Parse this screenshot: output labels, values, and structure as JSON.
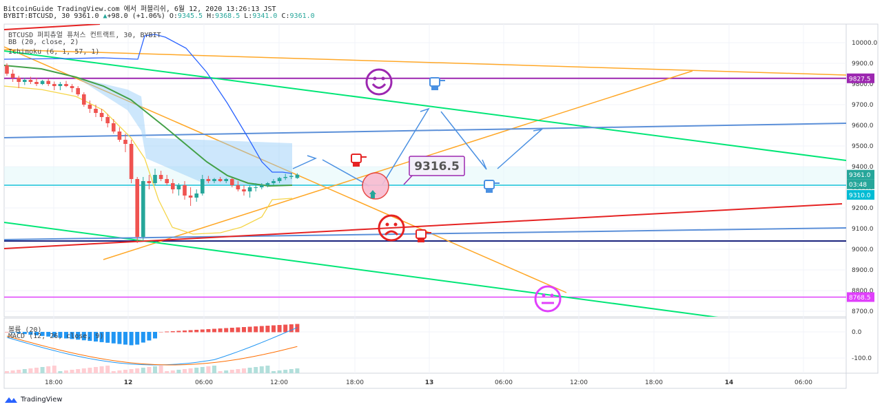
{
  "header": {
    "line1": "BitcoinGuide TradingView.com 에서 퍼블리쉬, 6월 12, 2020 13:26:13 JST",
    "symbol": "BYBIT:BTCUSD, 30",
    "price": "9361.0",
    "change": "+98.0 (+1.06%)",
    "o_label": "O:",
    "o": "9345.5",
    "h_label": "H:",
    "h": "9368.5",
    "l_label": "L:",
    "l": "9341.0",
    "c_label": "C:",
    "c": "9361.0"
  },
  "legend": {
    "main": "BTCUSD 퍼피츄얼 퓨처스 컨트랙트, 30, BYBIT",
    "bb": "BB (20, close, 2)",
    "ichimoku": "Ichimoku (6, 1, 57, 1)",
    "volume": "볼륨 (20)",
    "macd": "MACD (12, 26, close, 9)"
  },
  "annotations": {
    "price_box": "9316.5"
  },
  "footer": {
    "brand": "TradingView"
  },
  "colors": {
    "up": "#26a69a",
    "down": "#ef5350",
    "bb": "#2962ff",
    "cloud": "#90caf9",
    "green": "#00e676",
    "orange": "#ffa726",
    "red": "#e52222",
    "purple": "#9c27b0",
    "magenta": "#e040fb",
    "blue_line": "#5b8fd8",
    "navy": "#1a237e",
    "cyan": "#4dd0e1"
  },
  "chart_data": {
    "type": "candlestick",
    "y_axis_ticks": [
      "10000.0",
      "9900.0",
      "9800.0",
      "9700.0",
      "9600.0",
      "9500.0",
      "9400.0",
      "9300.0",
      "9200.0",
      "9100.0",
      "9000.0",
      "8900.0",
      "8800.0",
      "8700.0"
    ],
    "macd_axis_ticks": [
      "0.0",
      "-100.0"
    ],
    "x_axis_ticks": [
      "18:00",
      "12",
      "06:00",
      "12:00",
      "18:00",
      "13",
      "06:00",
      "12:00",
      "18:00",
      "14",
      "06:00"
    ],
    "price_labels": [
      {
        "value": "9827.5",
        "color": "#9c27b0"
      },
      {
        "value": "9361.0",
        "color": "#26a69a"
      },
      {
        "value": "03:48",
        "color": "#26a69a"
      },
      {
        "value": "9310.0",
        "color": "#00bcd4"
      },
      {
        "value": "8768.5",
        "color": "#e040fb"
      }
    ],
    "horizontal_levels": [
      9827.5,
      9310.0,
      9040.0,
      8768.5
    ],
    "candles": [
      {
        "o": 9890,
        "h": 9900,
        "l": 9840,
        "c": 9850
      },
      {
        "o": 9850,
        "h": 9870,
        "l": 9810,
        "c": 9830
      },
      {
        "o": 9830,
        "h": 9840,
        "l": 9780,
        "c": 9810
      },
      {
        "o": 9810,
        "h": 9830,
        "l": 9795,
        "c": 9820
      },
      {
        "o": 9820,
        "h": 9835,
        "l": 9800,
        "c": 9810
      },
      {
        "o": 9810,
        "h": 9830,
        "l": 9790,
        "c": 9800
      },
      {
        "o": 9800,
        "h": 9820,
        "l": 9795,
        "c": 9815
      },
      {
        "o": 9815,
        "h": 9825,
        "l": 9790,
        "c": 9800
      },
      {
        "o": 9800,
        "h": 9812,
        "l": 9770,
        "c": 9790
      },
      {
        "o": 9790,
        "h": 9810,
        "l": 9770,
        "c": 9800
      },
      {
        "o": 9800,
        "h": 9815,
        "l": 9785,
        "c": 9790
      },
      {
        "o": 9790,
        "h": 9800,
        "l": 9760,
        "c": 9780
      },
      {
        "o": 9780,
        "h": 9790,
        "l": 9740,
        "c": 9750
      },
      {
        "o": 9750,
        "h": 9760,
        "l": 9690,
        "c": 9700
      },
      {
        "o": 9700,
        "h": 9720,
        "l": 9660,
        "c": 9680
      },
      {
        "o": 9680,
        "h": 9700,
        "l": 9640,
        "c": 9660
      },
      {
        "o": 9660,
        "h": 9680,
        "l": 9620,
        "c": 9640
      },
      {
        "o": 9640,
        "h": 9655,
        "l": 9590,
        "c": 9610
      },
      {
        "o": 9610,
        "h": 9630,
        "l": 9560,
        "c": 9570
      },
      {
        "o": 9570,
        "h": 9590,
        "l": 9520,
        "c": 9530
      },
      {
        "o": 9530,
        "h": 9560,
        "l": 9470,
        "c": 9510
      },
      {
        "o": 9510,
        "h": 9530,
        "l": 9320,
        "c": 9340
      },
      {
        "o": 9340,
        "h": 9350,
        "l": 9030,
        "c": 9060
      },
      {
        "o": 9060,
        "h": 9350,
        "l": 9040,
        "c": 9330
      },
      {
        "o": 9330,
        "h": 9360,
        "l": 9290,
        "c": 9320
      },
      {
        "o": 9320,
        "h": 9390,
        "l": 9310,
        "c": 9360
      },
      {
        "o": 9360,
        "h": 9380,
        "l": 9330,
        "c": 9340
      },
      {
        "o": 9340,
        "h": 9360,
        "l": 9310,
        "c": 9320
      },
      {
        "o": 9320,
        "h": 9340,
        "l": 9270,
        "c": 9290
      },
      {
        "o": 9290,
        "h": 9320,
        "l": 9260,
        "c": 9310
      },
      {
        "o": 9310,
        "h": 9330,
        "l": 9240,
        "c": 9260
      },
      {
        "o": 9260,
        "h": 9300,
        "l": 9210,
        "c": 9250
      },
      {
        "o": 9250,
        "h": 9290,
        "l": 9230,
        "c": 9270
      },
      {
        "o": 9270,
        "h": 9360,
        "l": 9260,
        "c": 9340
      },
      {
        "o": 9340,
        "h": 9355,
        "l": 9320,
        "c": 9330
      },
      {
        "o": 9330,
        "h": 9345,
        "l": 9320,
        "c": 9340
      },
      {
        "o": 9340,
        "h": 9350,
        "l": 9325,
        "c": 9330
      },
      {
        "o": 9330,
        "h": 9345,
        "l": 9320,
        "c": 9340
      },
      {
        "o": 9340,
        "h": 9345,
        "l": 9300,
        "c": 9310
      },
      {
        "o": 9310,
        "h": 9330,
        "l": 9280,
        "c": 9290
      },
      {
        "o": 9290,
        "h": 9310,
        "l": 9260,
        "c": 9280
      },
      {
        "o": 9280,
        "h": 9310,
        "l": 9250,
        "c": 9300
      },
      {
        "o": 9300,
        "h": 9320,
        "l": 9280,
        "c": 9300
      },
      {
        "o": 9300,
        "h": 9320,
        "l": 9290,
        "c": 9310
      },
      {
        "o": 9310,
        "h": 9325,
        "l": 9300,
        "c": 9320
      },
      {
        "o": 9320,
        "h": 9340,
        "l": 9310,
        "c": 9330
      },
      {
        "o": 9330,
        "h": 9350,
        "l": 9320,
        "c": 9345
      },
      {
        "o": 9345,
        "h": 9365,
        "l": 9335,
        "c": 9350
      },
      {
        "o": 9350,
        "h": 9370,
        "l": 9340,
        "c": 9355
      },
      {
        "o": 9345,
        "h": 9368,
        "l": 9341,
        "c": 9361
      }
    ]
  }
}
